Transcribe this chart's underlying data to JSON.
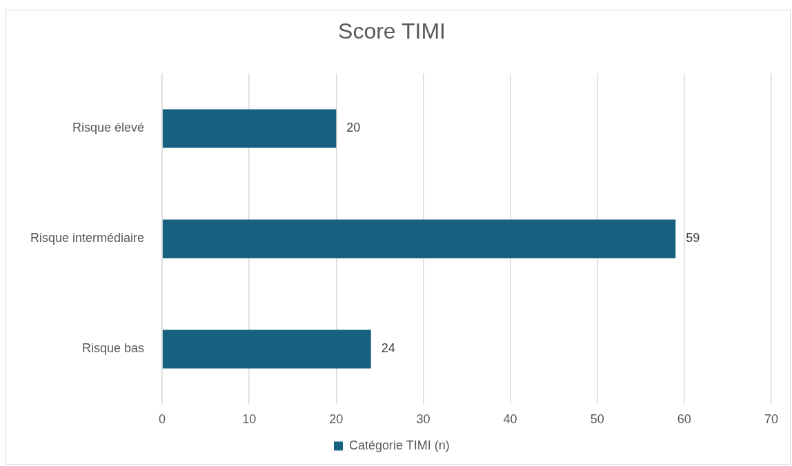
{
  "chart_data": {
    "type": "bar",
    "title": "Score TIMI",
    "orientation": "horizontal",
    "categories": [
      "Risque élevé",
      "Risque intermédiaire",
      "Risque bas"
    ],
    "series": [
      {
        "name": "Catégorie TIMI (n)",
        "color": "#17607f",
        "values": [
          20,
          59,
          24
        ]
      }
    ],
    "xlim": [
      0,
      70
    ],
    "xticks": [
      0,
      10,
      20,
      30,
      40,
      50,
      60,
      70
    ],
    "grid": "x",
    "legend": "bottom",
    "data_labels": true
  }
}
